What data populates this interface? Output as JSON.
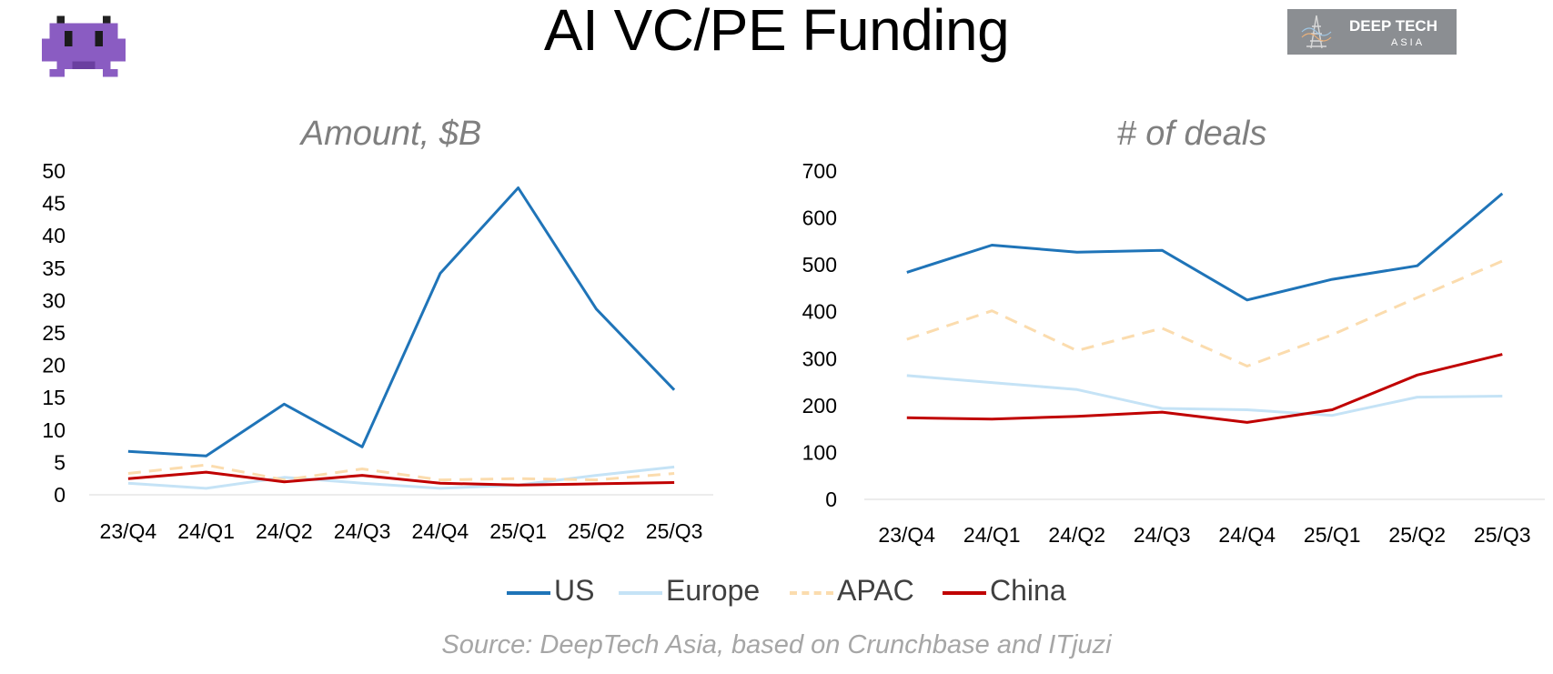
{
  "page_title": "AI VC/PE Funding",
  "logo": {
    "line1": "DEEP TECH",
    "line2": "ASIA"
  },
  "mascot_icon": "alien-monster-icon",
  "source": "Source: DeepTech Asia, based on Crunchbase and ITjuzi",
  "colors": {
    "US": "#1f74b8",
    "Europe": "#c5e3f6",
    "APAC": "#fbdcae",
    "China": "#c00000"
  },
  "legend": [
    {
      "name": "US",
      "style": "solid"
    },
    {
      "name": "Europe",
      "style": "solid"
    },
    {
      "name": "APAC",
      "style": "dashed"
    },
    {
      "name": "China",
      "style": "solid"
    }
  ],
  "chart_data": [
    {
      "type": "line",
      "title": "Amount, $B",
      "categories": [
        "23/Q4",
        "24/Q1",
        "24/Q2",
        "24/Q3",
        "24/Q4",
        "25/Q1",
        "25/Q2",
        "25/Q3"
      ],
      "ylim": [
        0,
        50
      ],
      "yticks": [
        0,
        5,
        10,
        15,
        20,
        25,
        30,
        35,
        40,
        45,
        50
      ],
      "grid": false,
      "legend_position": "bottom",
      "series": [
        {
          "name": "US",
          "values": [
            6.7,
            6.0,
            14.0,
            7.4,
            34.2,
            47.4,
            28.7,
            16.2
          ]
        },
        {
          "name": "Europe",
          "values": [
            1.8,
            1.0,
            2.7,
            1.8,
            1.0,
            1.5,
            3.0,
            4.3
          ]
        },
        {
          "name": "APAC",
          "values": [
            3.3,
            4.6,
            2.3,
            4.0,
            2.3,
            2.5,
            2.3,
            3.3
          ]
        },
        {
          "name": "China",
          "values": [
            2.5,
            3.5,
            2.0,
            3.0,
            1.8,
            1.5,
            1.7,
            1.9
          ]
        }
      ]
    },
    {
      "type": "line",
      "title": "# of deals",
      "categories": [
        "23/Q4",
        "24/Q1",
        "24/Q2",
        "24/Q3",
        "24/Q4",
        "25/Q1",
        "25/Q2",
        "25/Q3"
      ],
      "ylim": [
        0,
        700
      ],
      "yticks": [
        0,
        100,
        200,
        300,
        400,
        500,
        600,
        700
      ],
      "grid": false,
      "legend_position": "bottom",
      "series": [
        {
          "name": "US",
          "values": [
            484,
            542,
            527,
            531,
            425,
            469,
            498,
            652
          ]
        },
        {
          "name": "Europe",
          "values": [
            264,
            249,
            234,
            194,
            191,
            179,
            218,
            220
          ]
        },
        {
          "name": "APAC",
          "values": [
            341,
            402,
            317,
            365,
            284,
            351,
            430,
            508
          ]
        },
        {
          "name": "China",
          "values": [
            174,
            171,
            177,
            186,
            164,
            191,
            265,
            309
          ]
        }
      ]
    }
  ]
}
